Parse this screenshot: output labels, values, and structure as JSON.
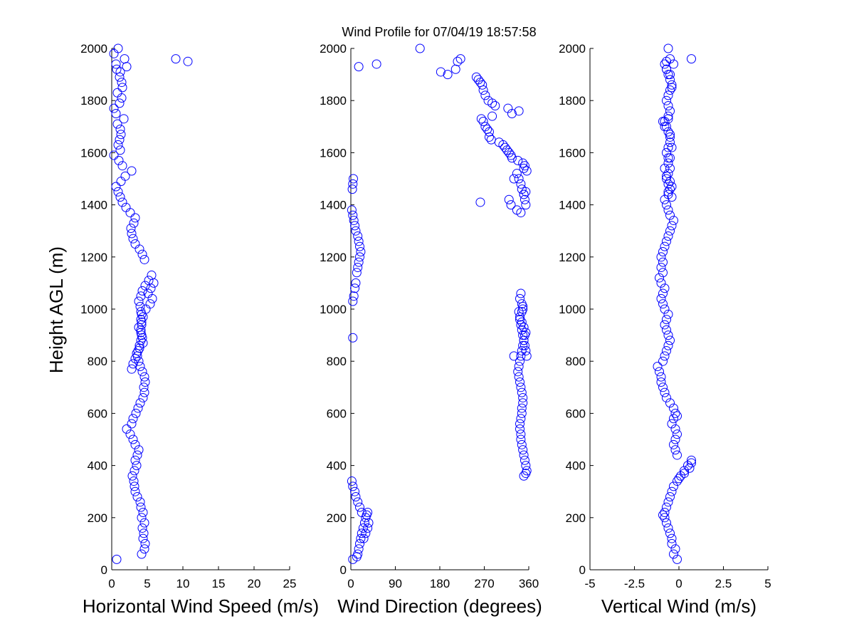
{
  "figure": {
    "title": "Wind Profile for  07/04/19 18:57:58",
    "ylabel": "Height AGL (m)",
    "point_color": "#0000ff"
  },
  "chart_data": [
    {
      "type": "scatter",
      "xlabel": "Horizontal Wind Speed (m/s)",
      "ylabel": "Height AGL (m)",
      "xlim": [
        0,
        25
      ],
      "ylim": [
        0,
        2000
      ],
      "xticks": [
        0,
        5,
        10,
        15,
        20,
        25
      ],
      "xtick_labels": [
        "0",
        "5",
        "10",
        "15",
        "20",
        "25"
      ],
      "yticks": [
        0,
        200,
        400,
        600,
        800,
        1000,
        1200,
        1400,
        1600,
        1800,
        2000
      ],
      "ytick_labels": [
        "0",
        "200",
        "400",
        "600",
        "800",
        "1000",
        "1200",
        "1400",
        "1600",
        "1800",
        "2000"
      ],
      "x": [
        0.7,
        4.2,
        4.6,
        4.7,
        4.4,
        4.5,
        4.3,
        4.6,
        4.2,
        4.4,
        4.1,
        4.0,
        3.6,
        3.3,
        3.2,
        3.1,
        2.9,
        3.2,
        3.5,
        3.3,
        3.6,
        3.8,
        3.3,
        3.0,
        2.6,
        2.1,
        2.8,
        3.0,
        3.4,
        3.7,
        4.0,
        4.4,
        4.6,
        4.5,
        4.7,
        4.6,
        4.3,
        4.0,
        3.8,
        3.6,
        3.7,
        3.9,
        4.1,
        4.2,
        4.1,
        4.2,
        4.1,
        4.2,
        3.0,
        2.8,
        3.3,
        3.5,
        3.9,
        4.4,
        4.3,
        4.1,
        3.8,
        4.2,
        4.4,
        4.1,
        4.0,
        3.8,
        4.1,
        4.3,
        4.7,
        5.2,
        5.6,
        5.9,
        5.5,
        5.1,
        5.7,
        5.4,
        4.8,
        4.6,
        4.3,
        3.9,
        3.3,
        3.0,
        2.8,
        2.7,
        3.1,
        3.3,
        2.6,
        2.0,
        1.5,
        1.2,
        0.9,
        0.6,
        1.3,
        1.9,
        2.8,
        1.5,
        1.0,
        0.3,
        1.2,
        0.9,
        1.1,
        1.3,
        1.2,
        0.8,
        1.7,
        0.6,
        0.3,
        1.1,
        1.4,
        0.8,
        1.5,
        1.4,
        1.1,
        1.2,
        2.1,
        0.6,
        1.8,
        0.3,
        0.9,
        9.0,
        10.7,
        0.7
      ],
      "y": [
        40,
        60,
        80,
        100,
        120,
        140,
        160,
        180,
        200,
        220,
        240,
        260,
        280,
        300,
        320,
        340,
        360,
        380,
        400,
        420,
        440,
        460,
        480,
        500,
        520,
        540,
        560,
        580,
        600,
        620,
        640,
        660,
        680,
        700,
        720,
        740,
        760,
        780,
        800,
        820,
        840,
        860,
        880,
        900,
        920,
        940,
        960,
        980,
        790,
        770,
        810,
        830,
        850,
        870,
        890,
        910,
        930,
        950,
        970,
        990,
        1010,
        1030,
        1050,
        1070,
        1090,
        1110,
        1130,
        1100,
        1080,
        1060,
        1040,
        1020,
        1000,
        1190,
        1210,
        1230,
        1250,
        1270,
        1290,
        1310,
        1330,
        1350,
        1370,
        1390,
        1410,
        1430,
        1450,
        1470,
        1490,
        1510,
        1530,
        1550,
        1570,
        1590,
        1610,
        1630,
        1650,
        1670,
        1690,
        1710,
        1730,
        1750,
        1770,
        1790,
        1810,
        1830,
        1850,
        1870,
        1890,
        1910,
        1930,
        1940,
        1960,
        1980,
        2000,
        1960,
        1950,
        1920
      ]
    },
    {
      "type": "scatter",
      "xlabel": "Wind Direction (degrees)",
      "ylabel": "",
      "xlim": [
        0,
        360
      ],
      "ylim": [
        0,
        2000
      ],
      "xticks": [
        0,
        90,
        180,
        270,
        360
      ],
      "xtick_labels": [
        "0",
        "90",
        "180",
        "270",
        "360"
      ],
      "yticks": [
        0,
        200,
        400,
        600,
        800,
        1000,
        1200,
        1400,
        1600,
        1800,
        2000
      ],
      "ytick_labels": [
        "0",
        "200",
        "400",
        "600",
        "800",
        "1000",
        "1200",
        "1400",
        "1600",
        "1800",
        "2000"
      ],
      "x": [
        4,
        12,
        14,
        16,
        18,
        20,
        22,
        25,
        28,
        30,
        32,
        34,
        36,
        34,
        30,
        26,
        22,
        18,
        14,
        10,
        8,
        4,
        2,
        350,
        354,
        356,
        354,
        352,
        350,
        348,
        346,
        344,
        344,
        342,
        342,
        344,
        346,
        346,
        348,
        348,
        346,
        344,
        342,
        340,
        338,
        340,
        342,
        344,
        346,
        348,
        350,
        352,
        354,
        350,
        346,
        342,
        346,
        348,
        348,
        346,
        344,
        342,
        340,
        342,
        344,
        346,
        348,
        350,
        352,
        354,
        356,
        330,
        4,
        6,
        8,
        10,
        12,
        14,
        16,
        18,
        20,
        18,
        16,
        14,
        10,
        8,
        6,
        4,
        2,
        354,
        352,
        350,
        346,
        344,
        340,
        336,
        3,
        4,
        5,
        16,
        52,
        140,
        182,
        196,
        212,
        222,
        216,
        254,
        258,
        262,
        266,
        268,
        272,
        278,
        286,
        292,
        318,
        326,
        340,
        264,
        268,
        272,
        276,
        280,
        280,
        284,
        286,
        300,
        308,
        312,
        316,
        320,
        324,
        326,
        338,
        348,
        352,
        350,
        356,
        354,
        350,
        330,
        320,
        324,
        336,
        344,
        262,
        4
      ],
      "y": [
        40,
        50,
        60,
        80,
        100,
        120,
        140,
        160,
        180,
        200,
        210,
        220,
        180,
        160,
        140,
        120,
        220,
        240,
        260,
        280,
        300,
        320,
        340,
        360,
        370,
        380,
        400,
        420,
        440,
        460,
        480,
        500,
        520,
        540,
        560,
        580,
        600,
        620,
        640,
        660,
        680,
        700,
        720,
        740,
        760,
        780,
        800,
        820,
        840,
        860,
        880,
        900,
        910,
        930,
        950,
        970,
        990,
        1000,
        1010,
        1020,
        1060,
        1040,
        990,
        960,
        940,
        920,
        900,
        880,
        860,
        840,
        820,
        820,
        1030,
        1050,
        1080,
        1100,
        1140,
        1160,
        1180,
        1200,
        1220,
        1240,
        1260,
        1280,
        1300,
        1320,
        1340,
        1360,
        1380,
        1400,
        1420,
        1440,
        1460,
        1480,
        1500,
        1520,
        1460,
        1480,
        1500,
        1930,
        1940,
        2000,
        1910,
        1900,
        1920,
        1960,
        1950,
        1890,
        1880,
        1870,
        1860,
        1840,
        1820,
        1800,
        1790,
        1780,
        1770,
        1750,
        1760,
        1730,
        1720,
        1700,
        1690,
        1680,
        1660,
        1650,
        1740,
        1640,
        1630,
        1620,
        1610,
        1600,
        1590,
        1580,
        1570,
        1560,
        1550,
        1540,
        1530,
        1450,
        1440,
        1500,
        1420,
        1400,
        1380,
        1370,
        1410,
        890
      ]
    },
    {
      "type": "scatter",
      "xlabel": "Vertical Wind (m/s)",
      "ylabel": "",
      "xlim": [
        -5,
        5
      ],
      "ylim": [
        0,
        2000
      ],
      "xticks": [
        -5,
        -2.5,
        0,
        2.5,
        5
      ],
      "xtick_labels": [
        "-5",
        "-2.5",
        "0",
        "2.5",
        "5"
      ],
      "yticks": [
        0,
        200,
        400,
        600,
        800,
        1000,
        1200,
        1400,
        1600,
        1800,
        2000
      ],
      "ytick_labels": [
        "0",
        "200",
        "400",
        "600",
        "800",
        "1000",
        "1200",
        "1400",
        "1600",
        "1800",
        "2000"
      ],
      "x": [
        -0.1,
        -0.3,
        -0.2,
        -0.4,
        -0.4,
        -0.5,
        -0.6,
        -0.7,
        -0.8,
        -0.9,
        -0.8,
        -0.7,
        -0.6,
        -0.5,
        -0.4,
        -0.3,
        -0.1,
        0.1,
        0.3,
        0.5,
        0.7,
        0.7,
        0.6,
        0.3,
        0.0,
        -0.1,
        -0.2,
        -0.3,
        -0.2,
        -0.1,
        -0.2,
        -0.4,
        -0.3,
        -0.1,
        -0.2,
        -0.3,
        -0.5,
        -0.7,
        -0.8,
        -0.9,
        -1.0,
        -1.0,
        -1.1,
        -1.2,
        -0.9,
        -0.8,
        -0.7,
        -0.6,
        -0.5,
        -0.6,
        -0.7,
        -0.8,
        -0.7,
        -0.6,
        -0.8,
        -0.9,
        -1.0,
        -0.9,
        -0.8,
        -1.0,
        -1.1,
        -0.9,
        -1.0,
        -0.9,
        -1.0,
        -0.9,
        -0.8,
        -0.7,
        -0.6,
        -0.5,
        -0.4,
        -0.3,
        -0.5,
        -0.6,
        -0.7,
        -0.8,
        -0.6,
        -0.5,
        -0.6,
        -0.7,
        -0.6,
        -0.5,
        -0.6,
        -0.5,
        -0.7,
        -0.6,
        -0.5,
        -0.5,
        -0.6,
        -0.7,
        -0.8,
        -0.6,
        -0.5,
        -0.6,
        -0.7,
        -0.6,
        -0.5,
        -0.4,
        -0.5,
        -0.6,
        -0.7,
        -0.8,
        -0.7,
        -0.6,
        -0.5,
        -0.4,
        -0.6,
        -0.5,
        -0.4,
        -0.6,
        -0.8,
        -0.7,
        -0.5,
        -0.4,
        -0.6,
        -0.4,
        0.7,
        -0.7,
        -0.3,
        -0.5,
        -0.9,
        -0.8
      ],
      "y": [
        40,
        60,
        80,
        100,
        120,
        140,
        160,
        180,
        200,
        210,
        220,
        240,
        260,
        280,
        300,
        320,
        340,
        360,
        380,
        400,
        410,
        420,
        390,
        370,
        350,
        440,
        460,
        480,
        500,
        520,
        540,
        560,
        580,
        590,
        600,
        620,
        640,
        660,
        680,
        700,
        720,
        740,
        760,
        780,
        800,
        820,
        840,
        860,
        880,
        900,
        920,
        940,
        960,
        980,
        1000,
        1020,
        1040,
        1060,
        1080,
        1100,
        1120,
        1140,
        1160,
        1180,
        1200,
        1220,
        1240,
        1260,
        1280,
        1300,
        1320,
        1340,
        1360,
        1380,
        1400,
        1420,
        1440,
        1460,
        1480,
        1500,
        1520,
        1540,
        1560,
        1580,
        1600,
        1620,
        1640,
        1660,
        1680,
        1700,
        1720,
        1740,
        1760,
        1780,
        1800,
        1820,
        1840,
        1860,
        1880,
        1900,
        1920,
        1940,
        1950,
        2000,
        1960,
        1850,
        1730,
        1670,
        1620,
        1580,
        1540,
        1510,
        1490,
        1470,
        1450,
        1430,
        1960,
        1920,
        1940,
        1900,
        1720,
        1700
      ]
    }
  ]
}
